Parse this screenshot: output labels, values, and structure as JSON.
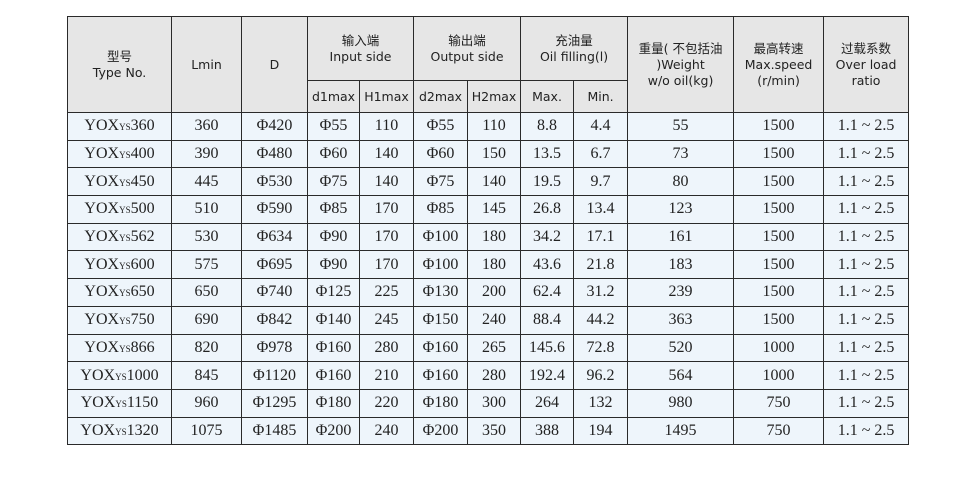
{
  "headers": {
    "type_cn": "型号",
    "type_en": "Type No.",
    "lmin": "Lmin",
    "d": "D",
    "input_cn": "输入端",
    "input_en": "Input side",
    "output_cn": "输出端",
    "output_en": "Output side",
    "oil_cn": "充油量",
    "oil_en": "Oil filling(l)",
    "weight_cn": "重量( 不包括油 )Weight",
    "weight_en": "w/o oil(kg)",
    "speed_cn": "最高转速",
    "speed_en": "Max.speed",
    "speed_unit": "(r/min)",
    "ratio_cn": "过载系数",
    "ratio_en": "Over load",
    "ratio_en2": "ratio",
    "d1max": "d1max",
    "h1max": "H1max",
    "d2max": "d2max",
    "h2max": "H2max",
    "oil_max": "Max.",
    "oil_min": "Min."
  },
  "rows": [
    {
      "base": "YOX",
      "sub": "YS",
      "num": "360",
      "lmin": "360",
      "d": "Φ420",
      "d1": "Φ55",
      "h1": "110",
      "d2": "Φ55",
      "h2": "110",
      "omax": "8.8",
      "omin": "4.4",
      "w": "55",
      "speed": "1500",
      "ratio": "1.1 ~ 2.5"
    },
    {
      "base": "YOX",
      "sub": "YS",
      "num": "400",
      "lmin": "390",
      "d": "Φ480",
      "d1": "Φ60",
      "h1": "140",
      "d2": "Φ60",
      "h2": "150",
      "omax": "13.5",
      "omin": "6.7",
      "w": "73",
      "speed": "1500",
      "ratio": "1.1 ~ 2.5"
    },
    {
      "base": "YOX",
      "sub": "YS",
      "num": "450",
      "lmin": "445",
      "d": "Φ530",
      "d1": "Φ75",
      "h1": "140",
      "d2": "Φ75",
      "h2": "140",
      "omax": "19.5",
      "omin": "9.7",
      "w": "80",
      "speed": "1500",
      "ratio": "1.1 ~ 2.5"
    },
    {
      "base": "YOX",
      "sub": "YS",
      "num": "500",
      "lmin": "510",
      "d": "Φ590",
      "d1": "Φ85",
      "h1": "170",
      "d2": "Φ85",
      "h2": "145",
      "omax": "26.8",
      "omin": "13.4",
      "w": "123",
      "speed": "1500",
      "ratio": "1.1 ~ 2.5"
    },
    {
      "base": "YOX",
      "sub": "YS",
      "num": "562",
      "lmin": "530",
      "d": "Φ634",
      "d1": "Φ90",
      "h1": "170",
      "d2": "Φ100",
      "h2": "180",
      "omax": "34.2",
      "omin": "17.1",
      "w": "161",
      "speed": "1500",
      "ratio": "1.1 ~ 2.5"
    },
    {
      "base": "YOX",
      "sub": "YS",
      "num": "600",
      "lmin": "575",
      "d": "Φ695",
      "d1": "Φ90",
      "h1": "170",
      "d2": "Φ100",
      "h2": "180",
      "omax": "43.6",
      "omin": "21.8",
      "w": "183",
      "speed": "1500",
      "ratio": "1.1 ~ 2.5"
    },
    {
      "base": "YOX",
      "sub": "YS",
      "num": "650",
      "lmin": "650",
      "d": "Φ740",
      "d1": "Φ125",
      "h1": "225",
      "d2": "Φ130",
      "h2": "200",
      "omax": "62.4",
      "omin": "31.2",
      "w": "239",
      "speed": "1500",
      "ratio": "1.1 ~ 2.5"
    },
    {
      "base": "YOX",
      "sub": "YS",
      "num": "750",
      "lmin": "690",
      "d": "Φ842",
      "d1": "Φ140",
      "h1": "245",
      "d2": "Φ150",
      "h2": "240",
      "omax": "88.4",
      "omin": "44.2",
      "w": "363",
      "speed": "1500",
      "ratio": "1.1 ~ 2.5"
    },
    {
      "base": "YOX",
      "sub": "YS",
      "num": "866",
      "lmin": "820",
      "d": "Φ978",
      "d1": "Φ160",
      "h1": "280",
      "d2": "Φ160",
      "h2": "265",
      "omax": "145.6",
      "omin": "72.8",
      "w": "520",
      "speed": "1000",
      "ratio": "1.1 ~ 2.5"
    },
    {
      "base": "YOX",
      "sub": "YS",
      "num": "1000",
      "lmin": "845",
      "d": "Φ1120",
      "d1": "Φ160",
      "h1": "210",
      "d2": "Φ160",
      "h2": "280",
      "omax": "192.4",
      "omin": "96.2",
      "w": "564",
      "speed": "1000",
      "ratio": "1.1 ~ 2.5"
    },
    {
      "base": "YOX",
      "sub": "YS",
      "num": "1150",
      "lmin": "960",
      "d": "Φ1295",
      "d1": "Φ180",
      "h1": "220",
      "d2": "Φ180",
      "h2": "300",
      "omax": "264",
      "omin": "132",
      "w": "980",
      "speed": "750",
      "ratio": "1.1 ~ 2.5"
    },
    {
      "base": "YOX",
      "sub": "YS",
      "num": "1320",
      "lmin": "1075",
      "d": "Φ1485",
      "d1": "Φ200",
      "h1": "240",
      "d2": "Φ200",
      "h2": "350",
      "omax": "388",
      "omin": "194",
      "w": "1495",
      "speed": "750",
      "ratio": "1.1 ~ 2.5"
    }
  ]
}
